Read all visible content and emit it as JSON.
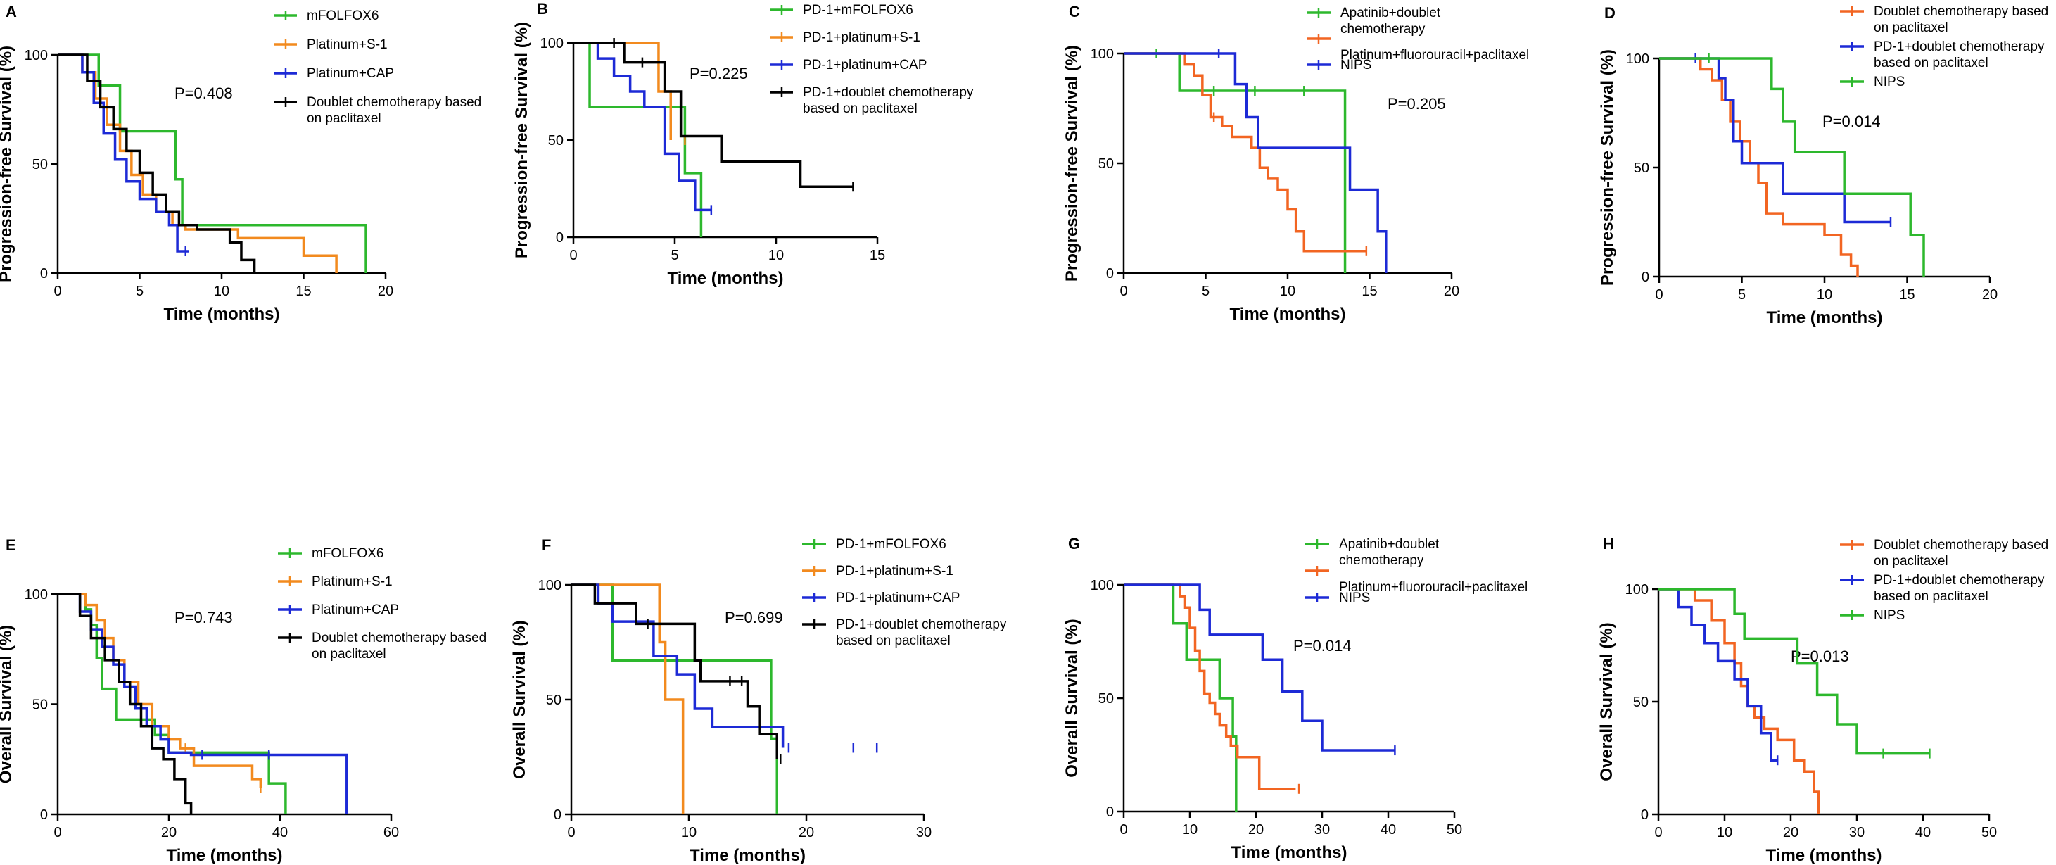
{
  "chart_data": [
    {
      "type": "line",
      "panel": "A",
      "ylabel": "Progression-free Survival (%)",
      "xlabel": "Time (months)",
      "xlim": [
        0,
        20
      ],
      "ylim": [
        0,
        100
      ],
      "xticks": [
        "0",
        "5",
        "10",
        "15",
        "20"
      ],
      "yticks": [
        "0",
        "50",
        "100"
      ],
      "pvalue": "P=0.408",
      "series": [
        {
          "name": "mFOLFOX6",
          "color": "#2db82d",
          "x": [
            0,
            2.5,
            3.0,
            3.8,
            4.5,
            5.0,
            7.2,
            7.6,
            18.8
          ],
          "y": [
            100,
            86,
            86,
            65,
            65,
            65,
            43,
            22,
            0
          ],
          "censor": []
        },
        {
          "name": "Platinum+S-1",
          "color": "#f28a1e",
          "x": [
            0,
            1.5,
            2.3,
            3.0,
            3.8,
            4.5,
            5.2,
            6.0,
            7.0,
            7.8,
            11.0,
            15.0,
            17.0
          ],
          "y": [
            100,
            92,
            80,
            68,
            56,
            45,
            36,
            28,
            22,
            20,
            16,
            8,
            0
          ],
          "censor": []
        },
        {
          "name": "Platinum+CAP",
          "color": "#1d2ad6",
          "x": [
            0,
            1.5,
            2.2,
            2.8,
            3.5,
            4.2,
            5.0,
            6.0,
            6.8,
            7.3,
            8.0
          ],
          "y": [
            100,
            92,
            78,
            64,
            52,
            42,
            34,
            28,
            22,
            10,
            10
          ],
          "censor": [
            7.8
          ]
        },
        {
          "name": "Doublet chemotherapy based on paclitaxel",
          "color": "#000000",
          "x": [
            0,
            1.8,
            2.6,
            3.4,
            4.2,
            5.0,
            5.8,
            6.6,
            7.4,
            8.5,
            10.5,
            11.2,
            12.0
          ],
          "y": [
            100,
            88,
            76,
            66,
            56,
            46,
            36,
            28,
            22,
            20,
            14,
            6,
            0
          ],
          "censor": []
        }
      ]
    },
    {
      "type": "line",
      "panel": "B",
      "ylabel": "Progression-free Survival (%)",
      "xlabel": "Time (months)",
      "xlim": [
        0,
        15
      ],
      "ylim": [
        0,
        100
      ],
      "xticks": [
        "0",
        "5",
        "10",
        "15"
      ],
      "yticks": [
        "0",
        "50",
        "100"
      ],
      "pvalue": "P=0.225",
      "series": [
        {
          "name": "PD-1+mFOLFOX6",
          "color": "#2db82d",
          "x": [
            0,
            0.8,
            5.5,
            6.3
          ],
          "y": [
            100,
            67,
            33,
            0
          ],
          "censor": []
        },
        {
          "name": "PD-1+platinum+S-1",
          "color": "#f28a1e",
          "x": [
            0,
            4.2,
            4.8
          ],
          "y": [
            100,
            75,
            50
          ],
          "censor": [
            5.5
          ]
        },
        {
          "name": "PD-1+platinum+CAP",
          "color": "#1d2ad6",
          "x": [
            0,
            1.2,
            2.0,
            2.8,
            3.5,
            4.5,
            5.2,
            6.0,
            6.8
          ],
          "y": [
            100,
            92,
            83,
            75,
            67,
            43,
            29,
            14,
            14
          ],
          "censor": [
            6.8
          ]
        },
        {
          "name": "PD-1+doublet chemotherapy based on paclitaxel",
          "color": "#000000",
          "x": [
            0,
            2.5,
            4.5,
            5.3,
            7.3,
            11.2,
            13.8
          ],
          "y": [
            100,
            90,
            75,
            52,
            39,
            26,
            26
          ],
          "censor": [
            2.0,
            3.4,
            13.8
          ]
        }
      ]
    },
    {
      "type": "line",
      "panel": "C",
      "ylabel": "Progression-free Survival (%)",
      "xlabel": "Time (months)",
      "xlim": [
        0,
        20
      ],
      "ylim": [
        0,
        100
      ],
      "xticks": [
        "0",
        "5",
        "10",
        "15",
        "20"
      ],
      "yticks": [
        "0",
        "50",
        "100"
      ],
      "pvalue": "P=0.205",
      "series": [
        {
          "name": "Apatinib+doublet chemotherapy",
          "color": "#2db82d",
          "x": [
            0,
            3.4,
            13.5
          ],
          "y": [
            100,
            83,
            0
          ],
          "censor": [
            2.0,
            5.5,
            8.0,
            11.0
          ]
        },
        {
          "name": "Platinum+fluorouracil+paclitaxel",
          "color": "#f26522",
          "x": [
            0,
            3.7,
            4.3,
            4.8,
            5.3,
            6.0,
            6.6,
            7.2,
            7.8,
            8.3,
            8.8,
            9.4,
            10.0,
            10.5,
            11.0,
            14.8
          ],
          "y": [
            100,
            95,
            90,
            81,
            71,
            67,
            62,
            62,
            57,
            48,
            43,
            38,
            29,
            19,
            10,
            10
          ],
          "censor": [
            5.5,
            14.8
          ]
        },
        {
          "name": "NIPS",
          "color": "#1d2ad6",
          "x": [
            0,
            6.8,
            7.5,
            8.2,
            11.2,
            13.8,
            15.5,
            16.0
          ],
          "y": [
            100,
            86,
            71,
            57,
            57,
            38,
            19,
            0
          ],
          "censor": [
            5.8
          ]
        }
      ]
    },
    {
      "type": "line",
      "panel": "D",
      "ylabel": "Progression-free Survival (%)",
      "xlabel": "Time (months)",
      "xlim": [
        0,
        20
      ],
      "ylim": [
        0,
        100
      ],
      "xticks": [
        "0",
        "5",
        "10",
        "15",
        "20"
      ],
      "yticks": [
        "0",
        "50",
        "100"
      ],
      "pvalue": "P=0.014",
      "series": [
        {
          "name": "Doublet chemotherapy based on paclitaxel",
          "color": "#f26522",
          "x": [
            0,
            2.5,
            3.2,
            3.8,
            4.3,
            4.9,
            5.5,
            6.0,
            6.5,
            7.5,
            10.0,
            11.0,
            11.6,
            12.0
          ],
          "y": [
            100,
            95,
            90,
            81,
            71,
            62,
            52,
            43,
            29,
            24,
            19,
            10,
            5,
            0
          ],
          "censor": []
        },
        {
          "name": "PD-1+doublet chemotherapy based on paclitaxel",
          "color": "#1d2ad6",
          "x": [
            0,
            3.6,
            4.0,
            4.5,
            5.0,
            7.5,
            11.2,
            14.0
          ],
          "y": [
            100,
            91,
            81,
            62,
            52,
            38,
            25,
            25
          ],
          "censor": [
            2.2,
            14.0
          ]
        },
        {
          "name": "NIPS",
          "color": "#2db82d",
          "x": [
            0,
            6.8,
            7.5,
            8.2,
            11.2,
            15.2,
            16.0
          ],
          "y": [
            100,
            86,
            71,
            57,
            38,
            19,
            0
          ],
          "censor": [
            3.0
          ]
        }
      ]
    },
    {
      "type": "line",
      "panel": "E",
      "ylabel": "Overall Survival (%)",
      "xlabel": "Time (months)",
      "xlim": [
        0,
        60
      ],
      "ylim": [
        0,
        100
      ],
      "xticks": [
        "0",
        "20",
        "40",
        "60"
      ],
      "yticks": [
        "0",
        "50",
        "100"
      ],
      "pvalue": "P=0.743",
      "series": [
        {
          "name": "mFOLFOX6",
          "color": "#2db82d",
          "x": [
            0,
            5.0,
            6.0,
            7.0,
            8.0,
            10.5,
            13.5,
            17.5,
            20.0,
            38.0,
            41.0
          ],
          "y": [
            100,
            93,
            86,
            71,
            57,
            43,
            43,
            36,
            28,
            14,
            0
          ],
          "censor": []
        },
        {
          "name": "Platinum+S-1",
          "color": "#f28a1e",
          "x": [
            0,
            5.0,
            7.0,
            8.5,
            10.0,
            12.0,
            14.5,
            17.0,
            20.0,
            22.0,
            24.5,
            35.0,
            36.5
          ],
          "y": [
            100,
            95,
            88,
            80,
            70,
            60,
            50,
            40,
            34,
            30,
            22,
            16,
            12
          ],
          "censor": [
            23.0,
            36.5
          ]
        },
        {
          "name": "Platinum+CAP",
          "color": "#1d2ad6",
          "x": [
            0,
            4.0,
            6.0,
            8.0,
            10.0,
            12.0,
            14.0,
            16.0,
            18.5,
            20.0,
            24.0,
            52.0
          ],
          "y": [
            100,
            92,
            84,
            76,
            68,
            58,
            48,
            40,
            34,
            28,
            27,
            0
          ],
          "censor": [
            26.0,
            38.0
          ]
        },
        {
          "name": "Doublet chemotherapy based on paclitaxel",
          "color": "#000000",
          "x": [
            0,
            4.0,
            6.0,
            8.5,
            11.0,
            13.0,
            15.0,
            17.0,
            19.0,
            21.0,
            23.0,
            24.0
          ],
          "y": [
            100,
            90,
            80,
            70,
            60,
            50,
            40,
            30,
            25,
            16,
            5,
            0
          ],
          "censor": []
        }
      ]
    },
    {
      "type": "line",
      "panel": "F",
      "ylabel": "Overall Survival (%)",
      "xlabel": "Time (months)",
      "xlim": [
        0,
        30
      ],
      "ylim": [
        0,
        100
      ],
      "xticks": [
        "0",
        "10",
        "20",
        "30"
      ],
      "yticks": [
        "0",
        "50",
        "100"
      ],
      "pvalue": "P=0.699",
      "series": [
        {
          "name": "PD-1+mFOLFOX6",
          "color": "#2db82d",
          "x": [
            0,
            3.5,
            17.0,
            17.5
          ],
          "y": [
            100,
            67,
            33,
            0
          ],
          "censor": []
        },
        {
          "name": "PD-1+platinum+S-1",
          "color": "#f28a1e",
          "x": [
            0,
            7.5,
            8.0,
            9.5
          ],
          "y": [
            100,
            75,
            50,
            0
          ],
          "censor": []
        },
        {
          "name": "PD-1+platinum+CAP",
          "color": "#1d2ad6",
          "x": [
            0,
            2.3,
            3.5,
            7.0,
            9.0,
            10.5,
            12.0,
            17.0,
            18.0
          ],
          "y": [
            100,
            92,
            84,
            69,
            61,
            46,
            38,
            38,
            29
          ],
          "censor": [
            18.5,
            24.0,
            26.0
          ]
        },
        {
          "name": "PD-1+doublet chemotherapy based on paclitaxel",
          "color": "#000000",
          "x": [
            0,
            2.0,
            5.5,
            10.5,
            11.0,
            15.0,
            16.0,
            17.5
          ],
          "y": [
            100,
            92,
            83,
            67,
            58,
            47,
            35,
            24
          ],
          "censor": [
            6.5,
            13.5,
            14.5,
            17.8
          ]
        }
      ]
    },
    {
      "type": "line",
      "panel": "G",
      "ylabel": "Overall Survival (%)",
      "xlabel": "Time (months)",
      "xlim": [
        0,
        50
      ],
      "ylim": [
        0,
        100
      ],
      "xticks": [
        "0",
        "10",
        "20",
        "30",
        "40",
        "50"
      ],
      "yticks": [
        "0",
        "50",
        "100"
      ],
      "pvalue": "P=0.014",
      "series": [
        {
          "name": "Apatinib+doublet chemotherapy",
          "color": "#2db82d",
          "x": [
            0,
            7.5,
            9.5,
            14.5,
            16.5,
            17.0
          ],
          "y": [
            100,
            83,
            67,
            50,
            33,
            0
          ],
          "censor": []
        },
        {
          "name": "Platinum+fluorouracil+paclitaxel",
          "color": "#f26522",
          "x": [
            0,
            8.5,
            9.2,
            10.0,
            10.8,
            11.5,
            12.2,
            13.0,
            13.8,
            14.5,
            15.5,
            16.2,
            17.2,
            20.5,
            26.0
          ],
          "y": [
            100,
            95,
            90,
            81,
            71,
            62,
            52,
            48,
            43,
            38,
            33,
            29,
            24,
            10,
            10
          ],
          "censor": [
            26.5
          ]
        },
        {
          "name": "NIPS",
          "color": "#1d2ad6",
          "x": [
            0,
            11.5,
            13.0,
            21.0,
            24.0,
            27.0,
            30.0,
            41.0
          ],
          "y": [
            100,
            89,
            78,
            67,
            53,
            40,
            27,
            27
          ],
          "censor": [
            41.0
          ]
        }
      ]
    },
    {
      "type": "line",
      "panel": "H",
      "ylabel": "Overall Survival (%)",
      "xlabel": "Time (months)",
      "xlim": [
        0,
        50
      ],
      "ylim": [
        0,
        100
      ],
      "xticks": [
        "0",
        "10",
        "20",
        "30",
        "40",
        "50"
      ],
      "yticks": [
        "0",
        "50",
        "100"
      ],
      "pvalue": "P=0.013",
      "series": [
        {
          "name": "Doublet chemotherapy based on paclitaxel",
          "color": "#f26522",
          "x": [
            0,
            5.5,
            8.0,
            10.0,
            11.5,
            12.5,
            13.5,
            14.5,
            16.0,
            18.0,
            20.5,
            22.0,
            23.5,
            24.2
          ],
          "y": [
            100,
            95,
            86,
            76,
            67,
            57,
            48,
            43,
            38,
            33,
            24,
            19,
            10,
            0
          ],
          "censor": []
        },
        {
          "name": "PD-1+doublet chemotherapy based on paclitaxel",
          "color": "#1d2ad6",
          "x": [
            0,
            3.0,
            5.0,
            7.0,
            9.0,
            11.5,
            13.5,
            15.5,
            17.0,
            18.0
          ],
          "y": [
            100,
            92,
            84,
            76,
            68,
            60,
            48,
            36,
            24,
            24
          ],
          "censor": [
            18.0
          ]
        },
        {
          "name": "NIPS",
          "color": "#2db82d",
          "x": [
            0,
            11.5,
            13.0,
            21.0,
            24.0,
            27.0,
            30.0,
            41.0
          ],
          "y": [
            100,
            89,
            78,
            67,
            53,
            40,
            27,
            27
          ],
          "censor": [
            34.0,
            41.0
          ]
        }
      ]
    }
  ]
}
